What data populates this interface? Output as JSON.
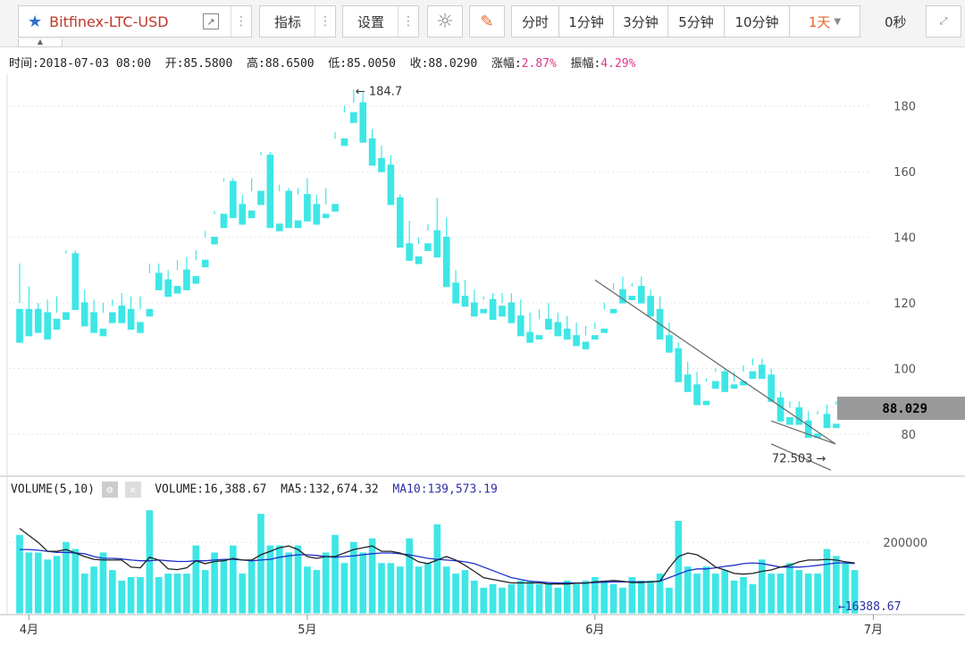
{
  "toolbar": {
    "symbol": "Bitfinex-LTC-USD",
    "indicator_label": "指标",
    "settings_label": "设置",
    "periods": [
      "分时",
      "1分钟",
      "3分钟",
      "5分钟",
      "10分钟",
      "1天"
    ],
    "active_period": "1天",
    "countdown": "0秒"
  },
  "info": {
    "time_label": "时间:",
    "time": "2018-07-03 08:00",
    "open_label": "开:",
    "open": "85.5800",
    "high_label": "高:",
    "high": "88.6500",
    "low_label": "低:",
    "low": "85.0050",
    "close_label": "收:",
    "close": "88.0290",
    "change_label": "涨幅:",
    "change": "2.87%",
    "amplitude_label": "振幅:",
    "amplitude": "4.29%"
  },
  "volume_info": {
    "title": "VOLUME(5,10)",
    "volume_label": "VOLUME:",
    "volume": "16,388.67",
    "ma5_label": "MA5:",
    "ma5": "132,674.32",
    "ma10_label": "MA10:",
    "ma10": "139,573.19"
  },
  "colors": {
    "up": "#c24fbf",
    "down": "#3ee6e6",
    "ma5": "#222222",
    "ma10": "#1f2fc8",
    "accent": "#e0388a"
  },
  "chart_data": {
    "type": "candlestick",
    "price_axis": {
      "ticks": [
        80,
        100,
        120,
        140,
        160,
        180
      ],
      "range": [
        68,
        190
      ]
    },
    "volume_axis": {
      "ticks": [
        200000
      ],
      "range": [
        0,
        325000
      ]
    },
    "x_ticks": [
      {
        "label": "4月",
        "index": 1
      },
      {
        "label": "5月",
        "index": 31
      },
      {
        "label": "6月",
        "index": 62
      },
      {
        "label": "7月",
        "index": 92
      }
    ],
    "current_price": "88.029",
    "current_volume": "16388.67",
    "max_label": "184.7",
    "min_label": "72.503",
    "candles": [
      [
        118,
        132,
        120,
        108,
        220000
      ],
      [
        118,
        125,
        115,
        110,
        170000
      ],
      [
        118,
        120,
        114,
        111,
        170000
      ],
      [
        117,
        121,
        113,
        109,
        150000
      ],
      [
        115,
        122,
        117,
        112,
        160000
      ],
      [
        117,
        136,
        135,
        115,
        200000
      ],
      [
        135,
        136,
        120,
        118,
        180000
      ],
      [
        120,
        124,
        117,
        113,
        110000
      ],
      [
        117,
        121,
        112,
        111,
        130000
      ],
      [
        112,
        120,
        117,
        110,
        170000
      ],
      [
        117,
        121,
        119,
        114,
        120000
      ],
      [
        119,
        123,
        118,
        114,
        90000
      ],
      [
        118,
        122,
        114,
        112,
        100000
      ],
      [
        114,
        122,
        118,
        111,
        100000
      ],
      [
        118,
        132,
        129,
        116,
        290000
      ],
      [
        129,
        132,
        127,
        124,
        100000
      ],
      [
        127,
        130,
        125,
        122,
        110000
      ],
      [
        125,
        133,
        130,
        123,
        110000
      ],
      [
        130,
        134,
        128,
        124,
        110000
      ],
      [
        128,
        136,
        133,
        126,
        190000
      ],
      [
        133,
        142,
        140,
        131,
        120000
      ],
      [
        140,
        148,
        147,
        138,
        170000
      ],
      [
        147,
        158,
        157,
        143,
        150000
      ],
      [
        157,
        158,
        150,
        146,
        190000
      ],
      [
        150,
        153,
        148,
        144,
        110000
      ],
      [
        148,
        158,
        154,
        146,
        150000
      ],
      [
        154,
        166,
        165,
        150,
        280000
      ],
      [
        165,
        166,
        144,
        143,
        190000
      ],
      [
        144,
        156,
        154,
        142,
        190000
      ],
      [
        154,
        155,
        145,
        143,
        170000
      ],
      [
        145,
        155,
        153,
        143,
        190000
      ],
      [
        153,
        158,
        150,
        145,
        130000
      ],
      [
        150,
        153,
        147,
        144,
        120000
      ],
      [
        147,
        155,
        150,
        146,
        170000
      ],
      [
        150,
        172,
        170,
        148,
        220000
      ],
      [
        170,
        180,
        178,
        168,
        140000
      ],
      [
        178,
        185,
        181,
        175,
        200000
      ],
      [
        181,
        184,
        170,
        169,
        170000
      ],
      [
        170,
        173,
        164,
        162,
        210000
      ],
      [
        164,
        168,
        162,
        160,
        140000
      ],
      [
        162,
        165,
        152,
        150,
        140000
      ],
      [
        152,
        153,
        138,
        137,
        130000
      ],
      [
        138,
        145,
        134,
        133,
        210000
      ],
      [
        134,
        140,
        138,
        132,
        130000
      ],
      [
        138,
        144,
        142,
        136,
        140000
      ],
      [
        142,
        152,
        140,
        134,
        250000
      ],
      [
        140,
        146,
        126,
        125,
        130000
      ],
      [
        126,
        130,
        122,
        120,
        110000
      ],
      [
        122,
        127,
        120,
        119,
        120000
      ],
      [
        120,
        124,
        118,
        116,
        90000
      ],
      [
        118,
        122,
        121,
        117,
        70000
      ],
      [
        121,
        123,
        119,
        115,
        80000
      ],
      [
        119,
        123,
        120,
        116,
        70000
      ],
      [
        120,
        123,
        116,
        114,
        80000
      ],
      [
        116,
        121,
        111,
        110,
        90000
      ],
      [
        111,
        117,
        110,
        108,
        90000
      ],
      [
        110,
        118,
        115,
        109,
        80000
      ],
      [
        115,
        120,
        114,
        112,
        80000
      ],
      [
        114,
        117,
        112,
        110,
        70000
      ],
      [
        112,
        116,
        110,
        109,
        90000
      ],
      [
        110,
        114,
        108,
        107,
        80000
      ],
      [
        108,
        113,
        110,
        106,
        90000
      ],
      [
        110,
        114,
        112,
        109,
        100000
      ],
      [
        112,
        120,
        118,
        111,
        90000
      ],
      [
        118,
        126,
        124,
        117,
        80000
      ],
      [
        124,
        128,
        122,
        120,
        70000
      ],
      [
        122,
        126,
        125,
        121,
        100000
      ],
      [
        125,
        128,
        122,
        120,
        90000
      ],
      [
        122,
        124,
        118,
        116,
        90000
      ],
      [
        118,
        122,
        110,
        109,
        110000
      ],
      [
        110,
        114,
        106,
        105,
        70000
      ],
      [
        106,
        108,
        98,
        96,
        260000
      ],
      [
        98,
        102,
        95,
        93,
        130000
      ],
      [
        95,
        99,
        90,
        89,
        110000
      ],
      [
        90,
        97,
        96,
        89,
        130000
      ],
      [
        96,
        100,
        99,
        94,
        110000
      ],
      [
        99,
        100,
        95,
        93,
        120000
      ],
      [
        95,
        99,
        96,
        94,
        90000
      ],
      [
        96,
        101,
        99,
        95,
        100000
      ],
      [
        99,
        103,
        101,
        97,
        80000
      ],
      [
        101,
        103,
        98,
        97,
        150000
      ],
      [
        98,
        100,
        91,
        90,
        110000
      ],
      [
        91,
        93,
        85,
        84,
        110000
      ],
      [
        85,
        90,
        88,
        83,
        140000
      ],
      [
        88,
        90,
        84,
        83,
        120000
      ],
      [
        84,
        87,
        80,
        79,
        110000
      ],
      [
        80,
        87,
        86,
        79,
        110000
      ],
      [
        86,
        89,
        83,
        82,
        180000
      ],
      [
        83,
        90,
        89,
        82,
        160000
      ],
      [
        89,
        90,
        86,
        85,
        140000
      ],
      [
        86,
        90,
        88,
        85,
        120000
      ]
    ],
    "ma5": [
      240000,
      220000,
      200000,
      175000,
      175000,
      180000,
      170000,
      160000,
      152000,
      150000,
      150000,
      150000,
      130000,
      128000,
      158000,
      150000,
      125000,
      123000,
      128000,
      148000,
      140000,
      146000,
      148000,
      155000,
      150000,
      150000,
      165000,
      175000,
      185000,
      190000,
      180000,
      160000,
      155000,
      160000,
      160000,
      170000,
      180000,
      185000,
      190000,
      175000,
      175000,
      170000,
      160000,
      145000,
      140000,
      150000,
      160000,
      150000,
      135000,
      118000,
      100000,
      95000,
      90000,
      85000,
      85000,
      85000,
      85000,
      82000,
      82000,
      82000,
      84000,
      84000,
      88000,
      90000,
      92000,
      90000,
      86000,
      86000,
      88000,
      90000,
      128000,
      160000,
      170000,
      165000,
      150000,
      130000,
      122000,
      112000,
      110000,
      112000,
      118000,
      122000,
      130000,
      135000,
      145000,
      150000,
      150000,
      152000,
      150000,
      145000,
      142000
    ],
    "ma10": [
      180000,
      180000,
      178000,
      175000,
      172000,
      172000,
      170000,
      168000,
      160000,
      155000,
      155000,
      153000,
      150000,
      148000,
      148000,
      150000,
      148000,
      146000,
      146000,
      148000,
      148000,
      150000,
      152000,
      152000,
      150000,
      148000,
      150000,
      152000,
      158000,
      162000,
      165000,
      165000,
      163000,
      160000,
      158000,
      160000,
      162000,
      165000,
      168000,
      170000,
      170000,
      168000,
      165000,
      160000,
      155000,
      152000,
      150000,
      148000,
      145000,
      140000,
      130000,
      120000,
      110000,
      100000,
      95000,
      90000,
      88000,
      86000,
      85000,
      85000,
      85000,
      85000,
      86000,
      87000,
      88000,
      88000,
      88000,
      88000,
      88000,
      90000,
      100000,
      110000,
      120000,
      125000,
      125000,
      128000,
      132000,
      135000,
      140000,
      142000,
      140000,
      135000,
      130000,
      130000,
      130000,
      132000,
      135000,
      138000,
      142000,
      142000,
      140000
    ]
  }
}
